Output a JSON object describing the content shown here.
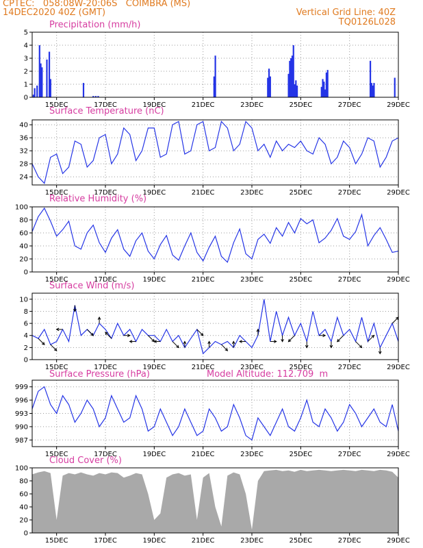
{
  "header": {
    "line1": "CPTEC:   058:08W-20:06S   COIMBRA (MS)",
    "line2": "14DEC2020 40Z (GMT)",
    "grid_note": "Vertical Grid Line: 40Z",
    "code": "TQ0126L028"
  },
  "colors": {
    "header": "#e07a1f",
    "title": "#d63ca0",
    "line": "#2434e6",
    "cloud": "#a9a9a9"
  },
  "chart_data": [
    {
      "id": "precip",
      "type": "bar",
      "title": "Precipitation (mm/h)",
      "ylim": [
        0,
        5
      ],
      "yticks": [
        0,
        1,
        2,
        3,
        4,
        5
      ],
      "grid": true,
      "x_ticks": [
        "15DEC",
        "17DEC",
        "19DEC",
        "21DEC",
        "23DEC",
        "25DEC",
        "27DEC",
        "29DEC"
      ],
      "x_day_range": [
        14,
        29
      ],
      "x": [
        14.05,
        14.1,
        14.2,
        14.3,
        14.35,
        14.4,
        14.6,
        14.7,
        14.75,
        16.1,
        16.5,
        16.6,
        16.7,
        21.45,
        21.5,
        23.65,
        23.7,
        23.75,
        24.5,
        24.55,
        24.6,
        24.65,
        24.7,
        24.75,
        24.8,
        24.85,
        25.85,
        25.9,
        25.95,
        26.0,
        26.05,
        26.1,
        27.85,
        27.9,
        27.95,
        28.0,
        28.85
      ],
      "values": [
        0.2,
        0.7,
        0.9,
        4.0,
        2.6,
        2.3,
        2.9,
        3.5,
        1.4,
        1.1,
        0.1,
        0.1,
        0.1,
        1.6,
        3.2,
        1.5,
        2.2,
        1.6,
        1.8,
        2.8,
        3.0,
        3.2,
        4.0,
        1.0,
        1.3,
        0.9,
        0.8,
        1.4,
        1.2,
        0.6,
        1.9,
        2.1,
        2.8,
        1.1,
        0.9,
        1.1,
        1.5
      ]
    },
    {
      "id": "temp",
      "type": "line",
      "title": "Surface Temperature (nC)",
      "ylim": [
        21.5,
        41.5
      ],
      "yticks": [
        24,
        28,
        32,
        36,
        40
      ],
      "grid": true,
      "x_ticks": [
        "15DEC",
        "17DEC",
        "19DEC",
        "21DEC",
        "23DEC",
        "25DEC",
        "27DEC",
        "29DEC"
      ],
      "x_day_range": [
        14,
        29
      ],
      "x": [
        14.0,
        14.25,
        14.5,
        14.75,
        15.0,
        15.25,
        15.5,
        15.75,
        16.0,
        16.25,
        16.5,
        16.75,
        17.0,
        17.25,
        17.5,
        17.75,
        18.0,
        18.25,
        18.5,
        18.75,
        19.0,
        19.25,
        19.5,
        19.75,
        20.0,
        20.25,
        20.5,
        20.75,
        21.0,
        21.25,
        21.5,
        21.75,
        22.0,
        22.25,
        22.5,
        22.75,
        23.0,
        23.25,
        23.5,
        23.75,
        24.0,
        24.25,
        24.5,
        24.75,
        25.0,
        25.25,
        25.5,
        25.75,
        26.0,
        26.25,
        26.5,
        26.75,
        27.0,
        27.25,
        27.5,
        27.75,
        28.0,
        28.25,
        28.5,
        28.75,
        29.0
      ],
      "values": [
        28,
        24,
        22,
        30,
        31,
        25,
        27,
        35,
        34,
        27,
        29,
        36,
        37,
        28,
        31,
        39,
        37,
        29,
        32,
        39,
        39,
        30,
        31,
        40,
        41,
        31,
        32,
        40,
        41,
        32,
        33,
        41,
        39,
        32,
        34,
        41,
        39,
        32,
        34,
        30,
        35,
        32,
        34,
        33,
        35,
        32,
        31,
        36,
        34,
        28,
        30,
        35,
        33,
        28,
        31,
        36,
        35,
        27,
        30,
        35,
        36
      ]
    },
    {
      "id": "rh",
      "type": "line",
      "title": "Relative Humidity (%)",
      "ylim": [
        0,
        100
      ],
      "yticks": [
        0,
        20,
        40,
        60,
        80,
        100
      ],
      "grid": true,
      "x_ticks": [
        "15DEC",
        "17DEC",
        "19DEC",
        "21DEC",
        "23DEC",
        "25DEC",
        "27DEC",
        "29DEC"
      ],
      "x_day_range": [
        14,
        29
      ],
      "x": [
        14.0,
        14.25,
        14.5,
        14.75,
        15.0,
        15.25,
        15.5,
        15.75,
        16.0,
        16.25,
        16.5,
        16.75,
        17.0,
        17.25,
        17.5,
        17.75,
        18.0,
        18.25,
        18.5,
        18.75,
        19.0,
        19.25,
        19.5,
        19.75,
        20.0,
        20.25,
        20.5,
        20.75,
        21.0,
        21.25,
        21.5,
        21.75,
        22.0,
        22.25,
        22.5,
        22.75,
        23.0,
        23.25,
        23.5,
        23.75,
        24.0,
        24.25,
        24.5,
        24.75,
        25.0,
        25.25,
        25.5,
        25.75,
        26.0,
        26.25,
        26.5,
        26.75,
        27.0,
        27.25,
        27.5,
        27.75,
        28.0,
        28.25,
        28.5,
        28.75,
        29.0
      ],
      "values": [
        62,
        85,
        98,
        78,
        55,
        65,
        78,
        40,
        35,
        60,
        72,
        45,
        30,
        52,
        65,
        35,
        24,
        48,
        60,
        32,
        20,
        42,
        56,
        26,
        18,
        40,
        60,
        30,
        17,
        38,
        55,
        24,
        15,
        45,
        66,
        28,
        20,
        50,
        58,
        44,
        68,
        55,
        76,
        60,
        82,
        74,
        80,
        45,
        52,
        64,
        82,
        55,
        50,
        62,
        88,
        40,
        56,
        68,
        50,
        30,
        32
      ]
    },
    {
      "id": "wind",
      "type": "line",
      "title": "Surface Wind (m/s)",
      "ylim": [
        0,
        11
      ],
      "yticks": [
        0,
        2,
        4,
        6,
        8,
        10
      ],
      "grid": true,
      "x_ticks": [
        "15DEC",
        "17DEC",
        "19DEC",
        "21DEC",
        "23DEC",
        "25DEC",
        "27DEC",
        "29DEC"
      ],
      "x_day_range": [
        14,
        29
      ],
      "x": [
        14.0,
        14.25,
        14.5,
        14.75,
        15.0,
        15.25,
        15.5,
        15.75,
        16.0,
        16.25,
        16.5,
        16.75,
        17.0,
        17.25,
        17.5,
        17.75,
        18.0,
        18.25,
        18.5,
        18.75,
        19.0,
        19.25,
        19.5,
        19.75,
        20.0,
        20.25,
        20.5,
        20.75,
        21.0,
        21.25,
        21.5,
        21.75,
        22.0,
        22.25,
        22.5,
        22.75,
        23.0,
        23.25,
        23.5,
        23.75,
        24.0,
        24.25,
        24.5,
        24.75,
        25.0,
        25.25,
        25.5,
        25.75,
        26.0,
        26.25,
        26.5,
        26.75,
        27.0,
        27.25,
        27.5,
        27.75,
        28.0,
        28.25,
        28.5,
        28.75,
        29.0
      ],
      "values": [
        4,
        3.5,
        5,
        2.5,
        3,
        5,
        3,
        9,
        4,
        5,
        4,
        6,
        5,
        3.5,
        6,
        4,
        5,
        3,
        5,
        4,
        4,
        3,
        5,
        3,
        4,
        2,
        3.5,
        5,
        1,
        2,
        3,
        2.5,
        3,
        2,
        4,
        3,
        2,
        4,
        10,
        3,
        8,
        4,
        7,
        4,
        6,
        3,
        8,
        4,
        5,
        3,
        7,
        4,
        5,
        3,
        7,
        3,
        6,
        2,
        4,
        6,
        3
      ],
      "arrows_dx": [
        1,
        1,
        -1,
        0,
        1,
        0,
        -1,
        1,
        -1,
        1,
        -1,
        1,
        0,
        1,
        0,
        1,
        0,
        -1,
        0,
        1,
        0,
        -1,
        0,
        1,
        0,
        -1,
        1,
        1,
        0,
        1
      ],
      "arrows_dy": [
        1,
        1,
        0,
        1,
        1,
        -1,
        -1,
        0,
        0,
        1,
        0,
        1,
        -1,
        1,
        -1,
        1,
        -1,
        0,
        -1,
        0,
        1,
        1,
        1,
        0,
        1,
        1,
        1,
        -1,
        1,
        -1
      ]
    },
    {
      "id": "press",
      "type": "line",
      "title": "Surface Pressure (hPa)",
      "subtitle": "Model Altitude: 112.709  m",
      "ylim": [
        985.5,
        1000.5
      ],
      "yticks": [
        987,
        990,
        993,
        996,
        999
      ],
      "grid": true,
      "x_ticks": [
        "15DEC",
        "17DEC",
        "19DEC",
        "21DEC",
        "23DEC",
        "25DEC",
        "27DEC",
        "29DEC"
      ],
      "x_day_range": [
        14,
        29
      ],
      "x": [
        14.0,
        14.25,
        14.5,
        14.75,
        15.0,
        15.25,
        15.5,
        15.75,
        16.0,
        16.25,
        16.5,
        16.75,
        17.0,
        17.25,
        17.5,
        17.75,
        18.0,
        18.25,
        18.5,
        18.75,
        19.0,
        19.25,
        19.5,
        19.75,
        20.0,
        20.25,
        20.5,
        20.75,
        21.0,
        21.25,
        21.5,
        21.75,
        22.0,
        22.25,
        22.5,
        22.75,
        23.0,
        23.25,
        23.5,
        23.75,
        24.0,
        24.25,
        24.5,
        24.75,
        25.0,
        25.25,
        25.5,
        25.75,
        26.0,
        26.25,
        26.5,
        26.75,
        27.0,
        27.25,
        27.5,
        27.75,
        28.0,
        28.25,
        28.5,
        28.75,
        29.0
      ],
      "values": [
        994,
        998,
        999,
        995,
        993,
        997,
        995,
        991,
        993,
        996,
        994,
        990,
        992,
        997,
        994,
        991,
        992,
        997,
        994,
        989,
        990,
        994,
        991,
        988,
        990,
        994,
        991,
        988,
        989,
        994,
        992,
        989,
        990,
        995,
        992,
        988,
        987,
        992,
        990,
        988,
        991,
        994,
        990,
        989,
        992,
        996,
        991,
        990,
        994,
        992,
        989,
        991,
        995,
        993,
        990,
        992,
        994,
        991,
        990,
        995,
        989
      ]
    },
    {
      "id": "cloud",
      "type": "area",
      "title": "Cloud Cover (%)",
      "ylim": [
        0,
        100
      ],
      "yticks": [
        0,
        20,
        40,
        60,
        80,
        100
      ],
      "grid": false,
      "x_ticks": [
        "15DEC",
        "17DEC",
        "19DEC",
        "21DEC",
        "23DEC",
        "25DEC",
        "27DEC",
        "29DEC"
      ],
      "x_day_range": [
        14,
        29
      ],
      "x": [
        14.0,
        14.25,
        14.5,
        14.75,
        15.0,
        15.25,
        15.5,
        15.75,
        16.0,
        16.25,
        16.5,
        16.75,
        17.0,
        17.25,
        17.5,
        17.75,
        18.0,
        18.25,
        18.5,
        18.75,
        19.0,
        19.25,
        19.5,
        19.75,
        20.0,
        20.25,
        20.5,
        20.75,
        21.0,
        21.25,
        21.5,
        21.75,
        22.0,
        22.25,
        22.5,
        22.75,
        23.0,
        23.25,
        23.5,
        23.75,
        24.0,
        24.25,
        24.5,
        24.75,
        25.0,
        25.25,
        25.5,
        25.75,
        26.0,
        26.25,
        26.5,
        26.75,
        27.0,
        27.25,
        27.5,
        27.75,
        28.0,
        28.25,
        28.5,
        28.75,
        29.0
      ],
      "values": [
        90,
        93,
        95,
        92,
        20,
        88,
        92,
        90,
        93,
        90,
        88,
        92,
        90,
        93,
        92,
        85,
        88,
        92,
        90,
        60,
        20,
        30,
        85,
        90,
        92,
        88,
        90,
        20,
        85,
        92,
        40,
        10,
        88,
        93,
        90,
        60,
        5,
        80,
        95,
        96,
        97,
        95,
        96,
        94,
        97,
        95,
        96,
        97,
        96,
        95,
        96,
        97,
        96,
        95,
        97,
        96,
        95,
        97,
        96,
        94,
        85
      ]
    }
  ]
}
